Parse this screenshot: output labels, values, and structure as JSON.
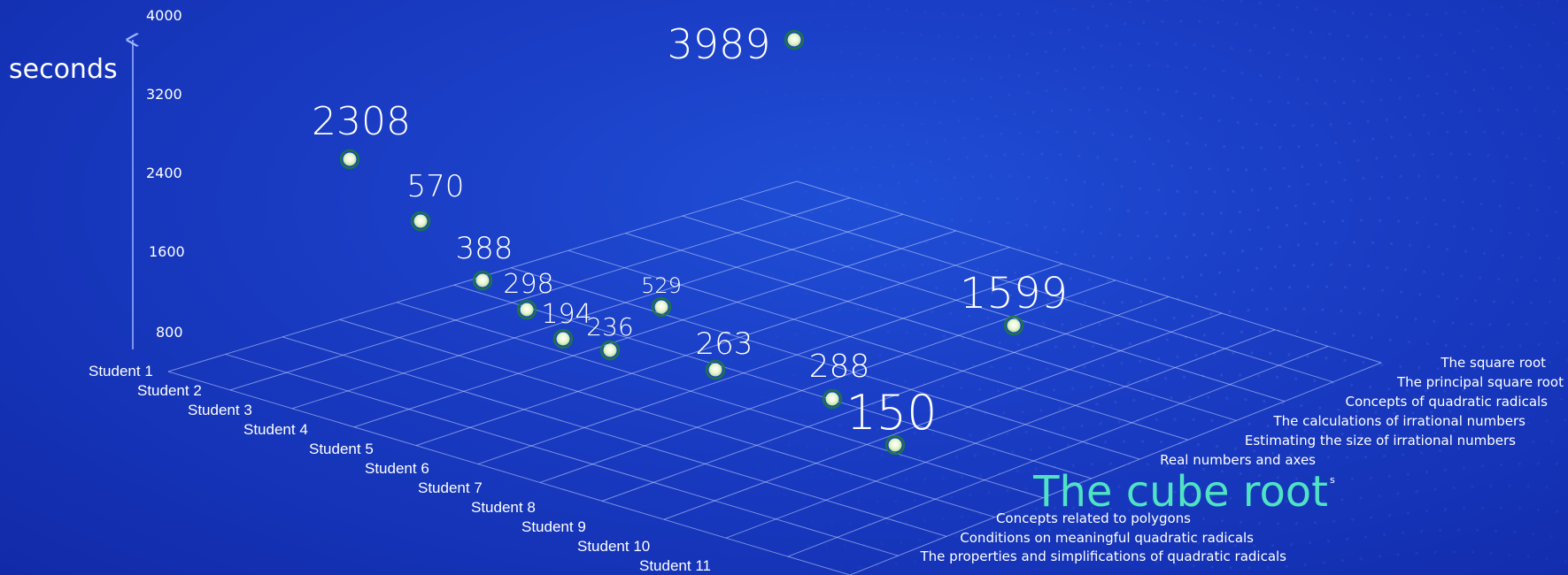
{
  "chart_data": {
    "type": "scatter",
    "ylabel": "seconds",
    "yticks": [
      "4000",
      "3200",
      "2400",
      "1600",
      "800"
    ],
    "x_categories": [
      "Student 1",
      "Student 2",
      "Student 3",
      "Student 4",
      "Student 5",
      "Student 6",
      "Student 7",
      "Student 8",
      "Student 9",
      "Student 10",
      "Student 11"
    ],
    "z_categories": [
      "The square root",
      "The principal square root",
      "Concepts of quadratic radicals",
      "The calculations of irrational numbers",
      "Estimating the size of irrational numbers",
      "Real numbers and axes",
      "The cube root",
      "Concepts related to polygons",
      "Conditions on meaningful quadratic radicals",
      "The properties and simplifications of quadratic radicals"
    ],
    "highlight_suffix": "s",
    "points": [
      {
        "label": "3989",
        "value": 3989
      },
      {
        "label": "2308",
        "value": 2308
      },
      {
        "label": "570",
        "value": 570
      },
      {
        "label": "388",
        "value": 388
      },
      {
        "label": "298",
        "value": 298
      },
      {
        "label": "194",
        "value": 194
      },
      {
        "label": "529",
        "value": 529
      },
      {
        "label": "236",
        "value": 236
      },
      {
        "label": "263",
        "value": 263
      },
      {
        "label": "1599",
        "value": 1599
      },
      {
        "label": "288",
        "value": 288
      },
      {
        "label": "150",
        "value": 150
      }
    ],
    "colors": {
      "background": "#1534b8",
      "point_fill": "#dff5c8",
      "point_stroke": "#2e7d32",
      "text": "#ffffff",
      "highlight": "#4fe3c3",
      "axis": "#9fb4ff"
    }
  }
}
